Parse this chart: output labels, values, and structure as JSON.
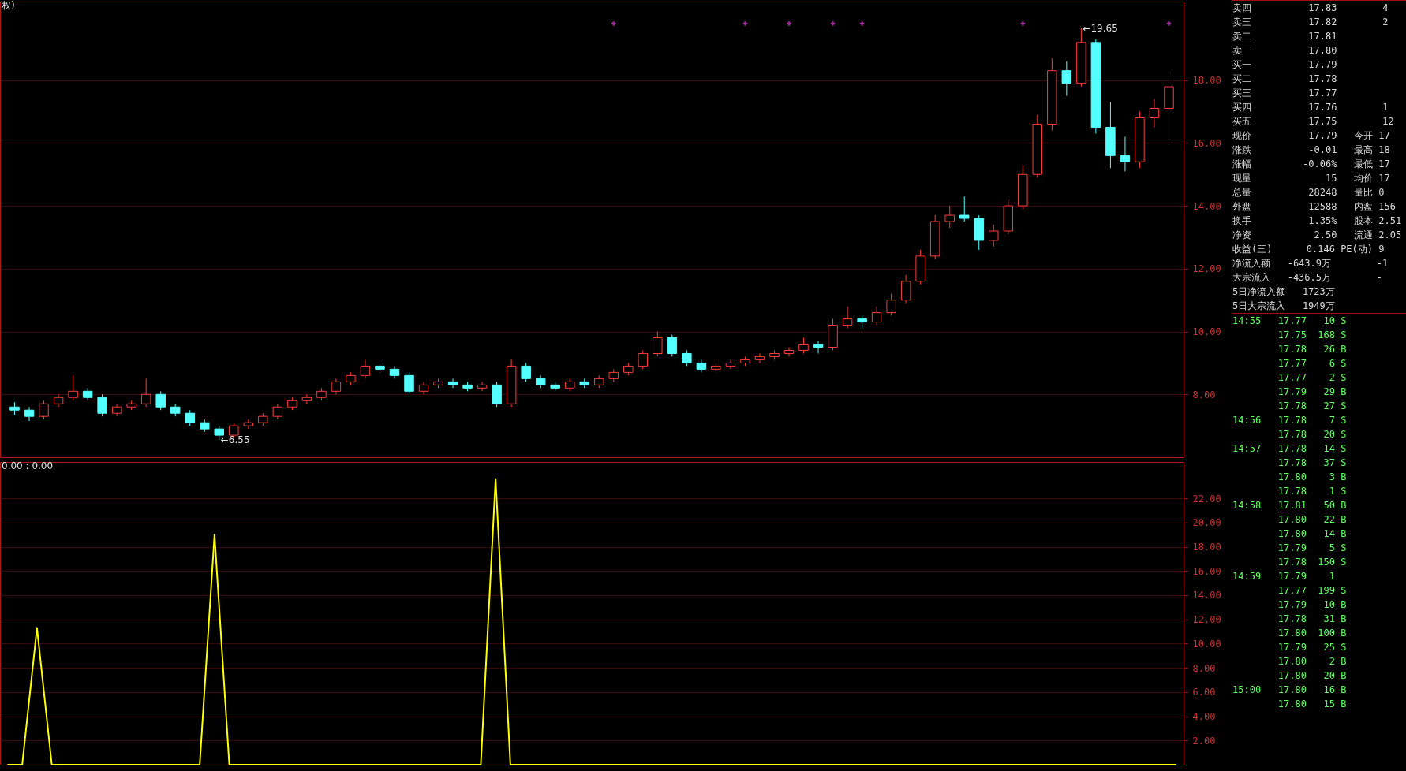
{
  "chart_data": [
    {
      "type": "candlestick",
      "categories": [
        null,
        null,
        null,
        null,
        null,
        null,
        null,
        null,
        null,
        null,
        null,
        null,
        null,
        null,
        null,
        null,
        null,
        null,
        null,
        null,
        null,
        null,
        null,
        null,
        null,
        null,
        null,
        null,
        null,
        null,
        null,
        null,
        null,
        null,
        null,
        null,
        null,
        null,
        null,
        null,
        null,
        null,
        null,
        null,
        null,
        null,
        null,
        null,
        null,
        null,
        null,
        null,
        null,
        null,
        null,
        null,
        null,
        null,
        null,
        null,
        null,
        null,
        null,
        null,
        null,
        null,
        null,
        null,
        null,
        null,
        null,
        null,
        null,
        null,
        null,
        null,
        null,
        null,
        null,
        null
      ],
      "ohlc": [
        [
          7.6,
          7.75,
          7.35,
          7.5
        ],
        [
          7.5,
          7.6,
          7.15,
          7.3
        ],
        [
          7.3,
          7.8,
          7.2,
          7.7
        ],
        [
          7.7,
          8.0,
          7.6,
          7.9
        ],
        [
          7.9,
          8.6,
          7.8,
          8.1
        ],
        [
          8.1,
          8.2,
          7.8,
          7.9
        ],
        [
          7.9,
          8.0,
          7.3,
          7.4
        ],
        [
          7.4,
          7.7,
          7.3,
          7.6
        ],
        [
          7.6,
          7.8,
          7.5,
          7.7
        ],
        [
          7.7,
          8.5,
          7.6,
          8.0
        ],
        [
          8.0,
          8.1,
          7.5,
          7.6
        ],
        [
          7.6,
          7.7,
          7.3,
          7.4
        ],
        [
          7.4,
          7.5,
          7.0,
          7.1
        ],
        [
          7.1,
          7.2,
          6.8,
          6.9
        ],
        [
          6.9,
          7.0,
          6.55,
          6.7
        ],
        [
          6.7,
          7.1,
          6.65,
          7.0
        ],
        [
          7.0,
          7.2,
          6.9,
          7.1
        ],
        [
          7.1,
          7.4,
          7.0,
          7.3
        ],
        [
          7.3,
          7.7,
          7.2,
          7.6
        ],
        [
          7.6,
          7.9,
          7.5,
          7.8
        ],
        [
          7.8,
          8.0,
          7.7,
          7.9
        ],
        [
          7.9,
          8.2,
          7.8,
          8.1
        ],
        [
          8.1,
          8.5,
          8.0,
          8.4
        ],
        [
          8.4,
          8.7,
          8.3,
          8.6
        ],
        [
          8.6,
          9.1,
          8.5,
          8.9
        ],
        [
          8.9,
          9.0,
          8.7,
          8.8
        ],
        [
          8.8,
          8.9,
          8.5,
          8.6
        ],
        [
          8.6,
          8.7,
          8.0,
          8.1
        ],
        [
          8.1,
          8.4,
          8.0,
          8.3
        ],
        [
          8.3,
          8.5,
          8.2,
          8.4
        ],
        [
          8.4,
          8.5,
          8.2,
          8.3
        ],
        [
          8.3,
          8.4,
          8.1,
          8.2
        ],
        [
          8.2,
          8.4,
          8.1,
          8.3
        ],
        [
          8.3,
          8.4,
          7.6,
          7.7
        ],
        [
          7.7,
          9.1,
          7.6,
          8.9
        ],
        [
          8.9,
          9.0,
          8.4,
          8.5
        ],
        [
          8.5,
          8.6,
          8.2,
          8.3
        ],
        [
          8.3,
          8.4,
          8.1,
          8.2
        ],
        [
          8.2,
          8.5,
          8.1,
          8.4
        ],
        [
          8.4,
          8.5,
          8.2,
          8.3
        ],
        [
          8.3,
          8.6,
          8.2,
          8.5
        ],
        [
          8.5,
          8.8,
          8.4,
          8.7
        ],
        [
          8.7,
          9.0,
          8.6,
          8.9
        ],
        [
          8.9,
          9.4,
          8.8,
          9.3
        ],
        [
          9.3,
          10.0,
          9.2,
          9.8
        ],
        [
          9.8,
          9.9,
          9.2,
          9.3
        ],
        [
          9.3,
          9.4,
          8.9,
          9.0
        ],
        [
          9.0,
          9.1,
          8.7,
          8.8
        ],
        [
          8.8,
          9.0,
          8.7,
          8.9
        ],
        [
          8.9,
          9.1,
          8.8,
          9.0
        ],
        [
          9.0,
          9.2,
          8.9,
          9.1
        ],
        [
          9.1,
          9.3,
          9.0,
          9.2
        ],
        [
          9.2,
          9.4,
          9.1,
          9.3
        ],
        [
          9.3,
          9.5,
          9.2,
          9.4
        ],
        [
          9.4,
          9.8,
          9.3,
          9.6
        ],
        [
          9.6,
          9.7,
          9.3,
          9.5
        ],
        [
          9.5,
          10.4,
          9.4,
          10.2
        ],
        [
          10.2,
          10.8,
          10.1,
          10.4
        ],
        [
          10.4,
          10.5,
          10.1,
          10.3
        ],
        [
          10.3,
          10.8,
          10.2,
          10.6
        ],
        [
          10.6,
          11.2,
          10.5,
          11.0
        ],
        [
          11.0,
          11.8,
          10.9,
          11.6
        ],
        [
          11.6,
          12.6,
          11.5,
          12.4
        ],
        [
          12.4,
          13.7,
          12.3,
          13.5
        ],
        [
          13.5,
          14.0,
          13.3,
          13.7
        ],
        [
          13.7,
          14.3,
          13.5,
          13.6
        ],
        [
          13.6,
          13.7,
          12.6,
          12.9
        ],
        [
          12.9,
          13.4,
          12.7,
          13.2
        ],
        [
          13.2,
          14.2,
          13.1,
          14.0
        ],
        [
          14.0,
          15.3,
          13.9,
          15.0
        ],
        [
          15.0,
          16.9,
          14.9,
          16.6
        ],
        [
          16.6,
          18.7,
          16.4,
          18.3
        ],
        [
          18.3,
          18.6,
          17.5,
          17.9
        ],
        [
          17.9,
          19.65,
          17.8,
          19.2
        ],
        [
          19.2,
          19.3,
          16.3,
          16.5
        ],
        [
          16.5,
          17.3,
          15.2,
          15.6
        ],
        [
          15.6,
          16.2,
          15.1,
          15.4
        ],
        [
          15.4,
          17.0,
          15.2,
          16.8
        ],
        [
          16.8,
          17.4,
          16.5,
          17.1
        ],
        [
          17.1,
          18.2,
          16.0,
          17.79
        ]
      ],
      "series": [
        {
          "type": "scatter",
          "color": "#e040e0",
          "marker": "cross",
          "values": [
            null,
            null,
            null,
            null,
            null,
            null,
            null,
            null,
            null,
            null,
            null,
            null,
            null,
            null,
            null,
            null,
            null,
            null,
            null,
            null,
            null,
            null,
            null,
            null,
            null,
            null,
            null,
            null,
            null,
            null,
            null,
            null,
            null,
            null,
            null,
            null,
            null,
            null,
            null,
            null,
            null,
            19.8,
            null,
            null,
            null,
            null,
            null,
            null,
            null,
            null,
            19.8,
            null,
            null,
            19.8,
            null,
            null,
            19.8,
            null,
            19.8,
            null,
            null,
            null,
            null,
            null,
            null,
            null,
            null,
            null,
            null,
            19.8,
            null,
            null,
            null,
            null,
            null,
            null,
            null,
            null,
            null,
            19.8
          ]
        }
      ],
      "ylim": [
        6.0,
        20.5
      ],
      "yticks": [
        {
          "value": 8,
          "label": "8.00"
        },
        {
          "value": 10,
          "label": "10.00"
        },
        {
          "value": 12,
          "label": "12.00"
        },
        {
          "value": 14,
          "label": "14.00"
        },
        {
          "value": 16,
          "label": "16.00"
        },
        {
          "value": 18,
          "label": "18.00"
        }
      ],
      "grid": "y",
      "annotations": [
        "权)",
        "←19.65",
        "←6.55"
      ]
    },
    {
      "type": "line",
      "categories": [
        null,
        null,
        null,
        null,
        null,
        null,
        null,
        null,
        null,
        null,
        null,
        null,
        null,
        null,
        null,
        null,
        null,
        null,
        null,
        null,
        null,
        null,
        null,
        null,
        null,
        null,
        null,
        null,
        null,
        null,
        null,
        null,
        null,
        null,
        null,
        null,
        null,
        null,
        null,
        null,
        null,
        null,
        null,
        null,
        null,
        null,
        null,
        null,
        null,
        null,
        null,
        null,
        null,
        null,
        null,
        null,
        null,
        null,
        null,
        null,
        null,
        null,
        null,
        null,
        null,
        null,
        null,
        null,
        null,
        null,
        null,
        null,
        null,
        null,
        null,
        null,
        null,
        null,
        null,
        null
      ],
      "series": [
        {
          "color": "#ffff00",
          "values": [
            0,
            0,
            11.3,
            0,
            0,
            0,
            0,
            0,
            0,
            0,
            0,
            0,
            0,
            0,
            19.0,
            0,
            0,
            0,
            0,
            0,
            0,
            0,
            0,
            0,
            0,
            0,
            0,
            0,
            0,
            0,
            0,
            0,
            0,
            23.6,
            0,
            0,
            0,
            0,
            0,
            0,
            0,
            0,
            0,
            0,
            0,
            0,
            0,
            0,
            0,
            0,
            0,
            0,
            0,
            0,
            0,
            0,
            0,
            0,
            0,
            0,
            0,
            0,
            0,
            0,
            0,
            0,
            0,
            0,
            0,
            0,
            0,
            0,
            0,
            0,
            0,
            0,
            0,
            0,
            0,
            0
          ]
        }
      ],
      "ylim": [
        0,
        25
      ],
      "yticks": [
        {
          "value": 2,
          "label": "2.00"
        },
        {
          "value": 4,
          "label": "4.00"
        },
        {
          "value": 6,
          "label": "6.00"
        },
        {
          "value": 8,
          "label": "8.00"
        },
        {
          "value": 10,
          "label": "10.00"
        },
        {
          "value": 12,
          "label": "12.00"
        },
        {
          "value": 14,
          "label": "14.00"
        },
        {
          "value": 16,
          "label": "16.00"
        },
        {
          "value": 18,
          "label": "18.00"
        },
        {
          "value": 20,
          "label": "20.00"
        },
        {
          "value": 22,
          "label": "22.00"
        }
      ],
      "grid": "y",
      "annotations": [
        "0.00 : 0.00"
      ]
    },
    {
      "type": "other",
      "cell_labels": [
        [
          "卖四",
          "17.83",
          null,
          "4"
        ],
        [
          "卖三",
          "17.82",
          null,
          "2"
        ],
        [
          "卖二",
          "17.81",
          null,
          null
        ],
        [
          "卖一",
          "17.80",
          null,
          null
        ],
        [
          "买一",
          "17.79",
          null,
          null
        ],
        [
          "买二",
          "17.78",
          null,
          null
        ],
        [
          "买三",
          "17.77",
          null,
          null
        ],
        [
          "买四",
          "17.76",
          null,
          "1"
        ],
        [
          "买五",
          "17.75",
          null,
          "12"
        ],
        [
          "现价",
          "17.79",
          "今开",
          "17"
        ],
        [
          "涨跌",
          "-0.01",
          "最高",
          "18"
        ],
        [
          "涨幅",
          "-0.06%",
          "最低",
          "17"
        ],
        [
          "现量",
          "15",
          "均价",
          "17"
        ],
        [
          "总量",
          "28248",
          "量比",
          "0"
        ],
        [
          "外盘",
          "12588",
          "内盘",
          "156"
        ],
        [
          "换手",
          "1.35%",
          "股本",
          "2.51"
        ],
        [
          "净资",
          "2.50",
          "流通",
          "2.05"
        ],
        [
          "收益(三)",
          "0.146",
          "PE(动)",
          "9"
        ],
        [
          "净流入额",
          "-643.9万",
          null,
          "-1"
        ],
        [
          "大宗流入",
          "-436.5万",
          null,
          "-"
        ],
        [
          "5日净流入额",
          "1723万",
          null,
          null
        ],
        [
          "5日大宗流入",
          "1949万",
          null,
          null
        ]
      ]
    },
    {
      "type": "other",
      "cell_labels": [
        [
          "14:55",
          "17.77",
          "10",
          "S"
        ],
        [
          null,
          "17.75",
          "168",
          "S"
        ],
        [
          null,
          "17.78",
          "26",
          "B"
        ],
        [
          null,
          "17.77",
          "6",
          "S"
        ],
        [
          null,
          "17.77",
          "2",
          "S"
        ],
        [
          null,
          "17.79",
          "29",
          "B"
        ],
        [
          null,
          "17.78",
          "27",
          "S"
        ],
        [
          "14:56",
          "17.78",
          "7",
          "S"
        ],
        [
          null,
          "17.78",
          "20",
          "S"
        ],
        [
          "14:57",
          "17.78",
          "14",
          "S"
        ],
        [
          null,
          "17.78",
          "37",
          "S"
        ],
        [
          null,
          "17.80",
          "3",
          "B"
        ],
        [
          null,
          "17.78",
          "1",
          "S"
        ],
        [
          "14:58",
          "17.81",
          "50",
          "B"
        ],
        [
          null,
          "17.80",
          "22",
          "B"
        ],
        [
          null,
          "17.80",
          "14",
          "B"
        ],
        [
          null,
          "17.79",
          "5",
          "S"
        ],
        [
          null,
          "17.78",
          "150",
          "S"
        ],
        [
          "14:59",
          "17.79",
          "1",
          null
        ],
        [
          null,
          "17.77",
          "199",
          "S"
        ],
        [
          null,
          "17.79",
          "10",
          "B"
        ],
        [
          null,
          "17.78",
          "31",
          "B"
        ],
        [
          null,
          "17.80",
          "100",
          "B"
        ],
        [
          null,
          "17.79",
          "25",
          "S"
        ],
        [
          null,
          "17.80",
          "2",
          "B"
        ],
        [
          null,
          "17.80",
          "20",
          "B"
        ],
        [
          "15:00",
          "17.80",
          "16",
          "B"
        ],
        [
          null,
          "17.80",
          "15",
          "B"
        ]
      ]
    }
  ]
}
